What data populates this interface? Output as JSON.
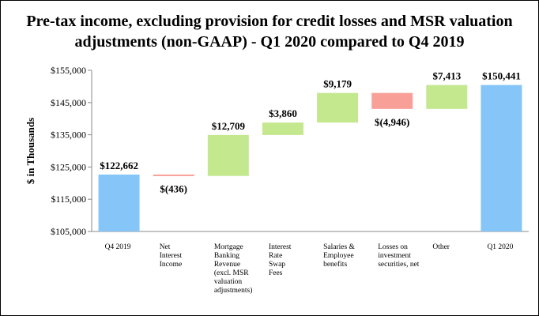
{
  "chart_data": {
    "type": "waterfall",
    "title": "Pre-tax income, excluding provision for credit losses and MSR valuation adjustments (non-GAAP) - Q1 2020 compared to Q4 2019",
    "title_lines": [
      "Pre-tax income, excluding provision for credit losses and MSR valuation",
      "adjustments (non-GAAP) - Q1 2020 compared to Q4 2019"
    ],
    "ylabel": "$ in Thousands",
    "ylim": [
      105000,
      155000
    ],
    "yticks": [
      105000,
      115000,
      125000,
      135000,
      145000,
      155000
    ],
    "ytick_labels": [
      "$105,000",
      "$115,000",
      "$125,000",
      "$135,000",
      "$145,000",
      "$155,000"
    ],
    "grid": false,
    "legend": "none",
    "colors": {
      "total": "#85C5F7",
      "increase": "#C4E88E",
      "decrease": "#F8A098"
    },
    "bars": [
      {
        "category_lines": [
          "Q4 2019"
        ],
        "kind": "total",
        "value": 122662,
        "label": "$122,662"
      },
      {
        "category_lines": [
          "Net",
          "Interest",
          "Income"
        ],
        "kind": "decrease",
        "value": -436,
        "label": "$(436)"
      },
      {
        "category_lines": [
          "Mortgage",
          "Banking",
          "Revenue",
          "(excl. MSR",
          "valuation",
          "adjustments)"
        ],
        "kind": "increase",
        "value": 12709,
        "label": "$12,709"
      },
      {
        "category_lines": [
          "Interest",
          "Rate",
          "Swap",
          "Fees"
        ],
        "kind": "increase",
        "value": 3860,
        "label": "$3,860"
      },
      {
        "category_lines": [
          "Salaries &",
          "Employee",
          "benefits"
        ],
        "kind": "increase",
        "value": 9179,
        "label": "$9,179"
      },
      {
        "category_lines": [
          "Losses on",
          "investment",
          "securities, net"
        ],
        "kind": "decrease",
        "value": -4946,
        "label": "$(4,946)"
      },
      {
        "category_lines": [
          "Other"
        ],
        "kind": "increase",
        "value": 7413,
        "label": "$7,413"
      },
      {
        "category_lines": [
          "Q1 2020"
        ],
        "kind": "total",
        "value": 150441,
        "label": "$150,441"
      }
    ]
  }
}
